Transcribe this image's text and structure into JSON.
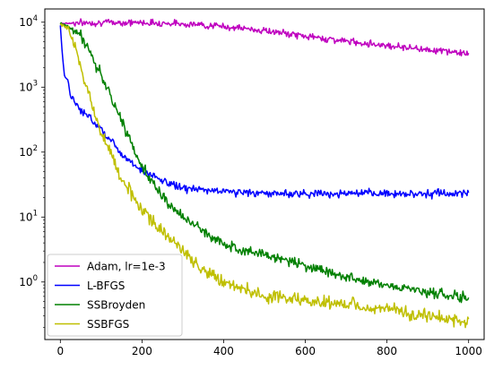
{
  "chart_data": {
    "type": "line",
    "title": "",
    "xlabel": "",
    "ylabel": "",
    "xlim": [
      -38,
      1038
    ],
    "ylim": [
      0.13,
      16000
    ],
    "yscale": "log",
    "grid": false,
    "legend_position": "lower-left",
    "x_ticks": [
      0,
      200,
      400,
      600,
      800,
      1000
    ],
    "y_ticks": [
      {
        "value": 1,
        "base": "10",
        "exp": "0"
      },
      {
        "value": 10,
        "base": "10",
        "exp": "1"
      },
      {
        "value": 100,
        "base": "10",
        "exp": "2"
      },
      {
        "value": 1000,
        "base": "10",
        "exp": "3"
      },
      {
        "value": 10000,
        "base": "10",
        "exp": "4"
      }
    ],
    "series": [
      {
        "name": "Adam, lr=1e-3",
        "color": "#bf00bf",
        "noise": 0.025,
        "points": [
          [
            0,
            9600
          ],
          [
            100,
            9900
          ],
          [
            200,
            9900
          ],
          [
            300,
            9500
          ],
          [
            400,
            8600
          ],
          [
            500,
            7400
          ],
          [
            600,
            6100
          ],
          [
            700,
            5100
          ],
          [
            800,
            4400
          ],
          [
            900,
            3800
          ],
          [
            1000,
            3300
          ]
        ]
      },
      {
        "name": "L-BFGS",
        "color": "#0000ff",
        "noise": 0.03,
        "points": [
          [
            0,
            9000
          ],
          [
            5,
            3000
          ],
          [
            10,
            1500
          ],
          [
            20,
            1200
          ],
          [
            25,
            700
          ],
          [
            50,
            450
          ],
          [
            100,
            230
          ],
          [
            150,
            95
          ],
          [
            200,
            52
          ],
          [
            250,
            36
          ],
          [
            300,
            28
          ],
          [
            350,
            26
          ],
          [
            400,
            25
          ],
          [
            500,
            23
          ],
          [
            600,
            23
          ],
          [
            700,
            23
          ],
          [
            800,
            23
          ],
          [
            900,
            23
          ],
          [
            1000,
            23
          ]
        ]
      },
      {
        "name": "SSBroyden",
        "color": "#008000",
        "noise": 0.04,
        "points": [
          [
            0,
            9800
          ],
          [
            20,
            8500
          ],
          [
            50,
            6500
          ],
          [
            100,
            1500
          ],
          [
            150,
            300
          ],
          [
            200,
            60
          ],
          [
            250,
            20
          ],
          [
            300,
            10
          ],
          [
            350,
            6
          ],
          [
            400,
            3.8
          ],
          [
            450,
            3.2
          ],
          [
            500,
            2.6
          ],
          [
            550,
            2.2
          ],
          [
            600,
            1.8
          ],
          [
            700,
            1.2
          ],
          [
            800,
            0.9
          ],
          [
            900,
            0.7
          ],
          [
            1000,
            0.55
          ]
        ]
      },
      {
        "name": "SSBFGS",
        "color": "#bfbf00",
        "noise": 0.05,
        "points": [
          [
            0,
            9500
          ],
          [
            20,
            8000
          ],
          [
            50,
            2000
          ],
          [
            100,
            200
          ],
          [
            150,
            40
          ],
          [
            200,
            13
          ],
          [
            250,
            6
          ],
          [
            300,
            3
          ],
          [
            350,
            1.6
          ],
          [
            400,
            1.0
          ],
          [
            500,
            0.6
          ],
          [
            600,
            0.52
          ],
          [
            700,
            0.45
          ],
          [
            800,
            0.38
          ],
          [
            900,
            0.3
          ],
          [
            1000,
            0.24
          ]
        ]
      }
    ]
  }
}
